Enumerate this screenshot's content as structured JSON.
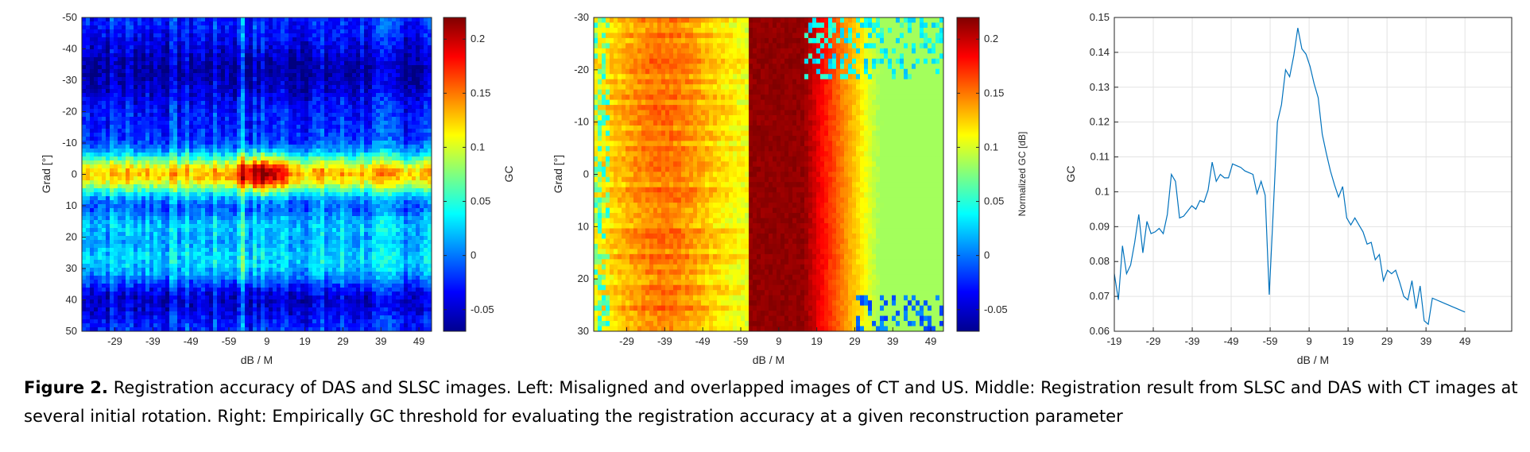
{
  "caption": {
    "label": "Figure 2.",
    "text": "Registration accuracy of DAS and SLSC images. Left: Misaligned and overlapped images of CT and US. Middle: Registration result from SLSC and DAS with CT images at several initial rotation. Right: Empirically GC threshold for evaluating the registration accuracy at a given reconstruction parameter"
  },
  "colormap": "jet",
  "chart_data": [
    {
      "type": "heatmap",
      "panel": "left",
      "xlabel": "dB / M",
      "ylabel": "Grad [°]",
      "x_tick_labels": [
        "-29",
        "-39",
        "-49",
        "-59",
        "9",
        "19",
        "29",
        "39",
        "49"
      ],
      "y_ticks": [
        -50,
        -40,
        -30,
        -20,
        -10,
        0,
        10,
        20,
        30,
        40,
        50
      ],
      "y_reversed": true,
      "colorbar": {
        "label": "GC",
        "range": [
          -0.07,
          0.22
        ],
        "ticks": [
          -0.05,
          0,
          0.05,
          0.1,
          0.15,
          0.2
        ]
      },
      "description_values": {
        "min": -0.06,
        "max": 0.22,
        "peak_location": {
          "x_label": "9",
          "grad": 0
        }
      }
    },
    {
      "type": "heatmap",
      "panel": "middle",
      "xlabel": "dB / M",
      "ylabel": "Grad [°]",
      "x_tick_labels": [
        "-29",
        "-39",
        "-49",
        "-59",
        "9",
        "19",
        "29",
        "39",
        "49"
      ],
      "y_ticks": [
        -30,
        -20,
        -10,
        0,
        10,
        20,
        30
      ],
      "y_reversed": true,
      "colorbar": {
        "label": "Normalized GC [dB]",
        "range": [
          -0.07,
          0.22
        ],
        "ticks": [
          -0.05,
          0,
          0.05,
          0.1,
          0.15,
          0.2
        ]
      },
      "description_values": {
        "min": -0.05,
        "max": 0.22,
        "peak_location": {
          "x_label": "9"
        }
      }
    },
    {
      "type": "line",
      "panel": "right",
      "xlabel": "dB / M",
      "ylabel": "GC",
      "x_tick_labels": [
        "-19",
        "-29",
        "-39",
        "-49",
        "-59",
        "9",
        "19",
        "29",
        "39",
        "49"
      ],
      "ylim": [
        0.06,
        0.15
      ],
      "y_ticks": [
        0.06,
        0.07,
        0.08,
        0.09,
        0.1,
        0.11,
        0.12,
        0.13,
        0.14,
        0.15
      ],
      "y_tick_labels": [
        "0.06",
        "0.07",
        "0.08",
        "0.09",
        "0.1",
        "0.11",
        "0.12",
        "0.13",
        "0.14",
        "0.15"
      ],
      "grid": true,
      "series": [
        {
          "color": "#0072bd",
          "values": [
            0.0765,
            0.069,
            0.0845,
            0.0765,
            0.079,
            0.0855,
            0.0935,
            0.0825,
            0.0915,
            0.088,
            0.0885,
            0.0895,
            0.088,
            0.0935,
            0.105,
            0.103,
            0.0925,
            0.093,
            0.0945,
            0.096,
            0.095,
            0.0975,
            0.097,
            0.1005,
            0.1085,
            0.103,
            0.105,
            0.104,
            0.104,
            0.108,
            0.1075,
            0.107,
            0.106,
            0.1055,
            0.105,
            0.0995,
            0.103,
            0.099,
            0.0705,
            0.095,
            0.12,
            0.125,
            0.135,
            0.133,
            0.139,
            0.147,
            0.141,
            0.1395,
            0.136,
            0.131,
            0.127,
            0.1165,
            0.111,
            0.106,
            0.102,
            0.0985,
            0.1015,
            0.0925,
            0.0905,
            0.0925,
            0.0905,
            0.0885,
            0.085,
            0.0855,
            0.0805,
            0.082,
            0.0745,
            0.0775,
            0.0765,
            0.0775,
            0.074,
            0.07,
            0.069,
            0.0745,
            0.0665,
            0.073,
            0.063,
            0.062,
            0.0695,
            0.069,
            0.0685,
            0.068,
            0.0675,
            0.067,
            0.0665,
            0.066,
            0.0655
          ]
        }
      ]
    }
  ]
}
